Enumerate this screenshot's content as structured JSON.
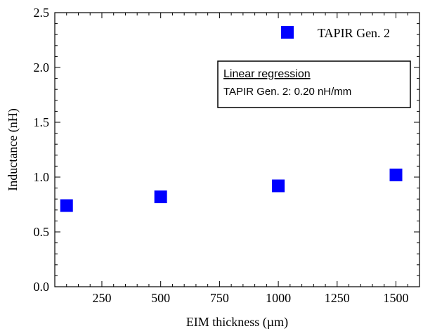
{
  "chart_data": {
    "type": "scatter",
    "title": "",
    "xlabel": "EIM thickness (µm)",
    "ylabel": "Inductance (nH)",
    "xlim": [
      50,
      1600
    ],
    "ylim": [
      0,
      2.5
    ],
    "x_ticks": [
      250,
      500,
      750,
      1000,
      1250,
      1500
    ],
    "y_ticks": [
      "0.0",
      "0.5",
      "1.0",
      "1.5",
      "2.0",
      "2.5"
    ],
    "grid": false,
    "legend": {
      "position": "top-right"
    },
    "series": [
      {
        "name": "TAPIR Gen. 2",
        "color": "#0000ff",
        "marker": "square",
        "x": [
          100,
          500,
          1000,
          1500
        ],
        "y": [
          0.74,
          0.82,
          0.92,
          1.02
        ]
      }
    ],
    "annotation": {
      "title": "Linear regression",
      "text": "TAPIR Gen. 2: 0.20 nH/mm"
    }
  }
}
